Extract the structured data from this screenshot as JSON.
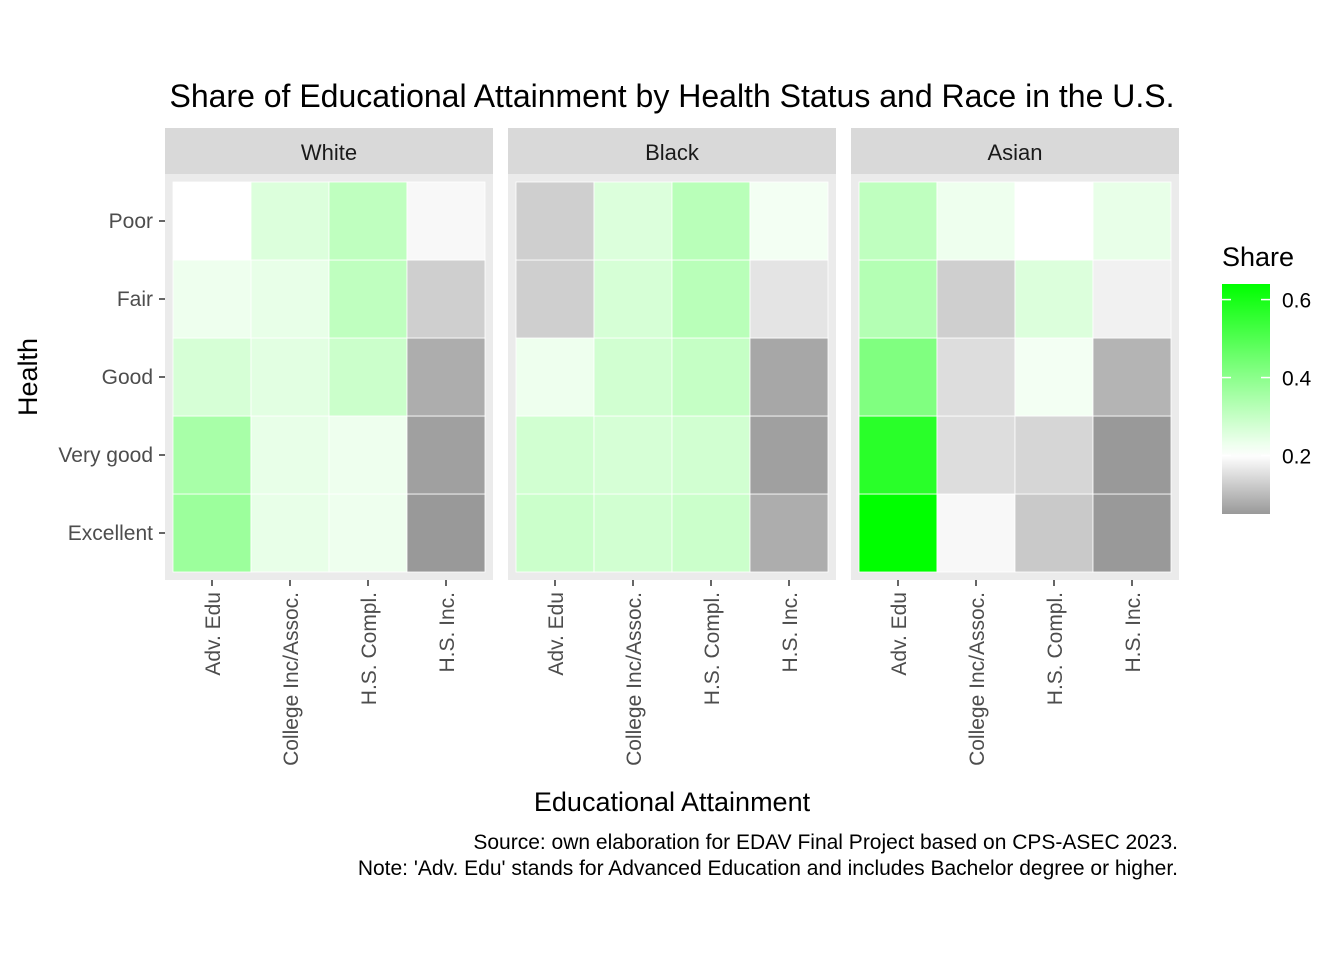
{
  "chart_data": {
    "type": "heatmap",
    "title": "Share of Educational Attainment by Health Status and Race in the U.S.",
    "xlabel": "Educational Attainment",
    "ylabel": "Health",
    "facets": [
      "White",
      "Black",
      "Asian"
    ],
    "x_categories": [
      "Adv. Edu",
      "College Inc/Assoc.",
      "H.S. Compl.",
      "H.S. Inc."
    ],
    "y_categories": [
      "Excellent",
      "Very good",
      "Good",
      "Fair",
      "Poor"
    ],
    "values": {
      "White": {
        "Poor": [
          0.2,
          0.26,
          0.31,
          0.19
        ],
        "Fair": [
          0.23,
          0.24,
          0.31,
          0.13
        ],
        "Good": [
          0.27,
          0.25,
          0.29,
          0.08
        ],
        "Very good": [
          0.35,
          0.24,
          0.23,
          0.06
        ],
        "Excellent": [
          0.37,
          0.24,
          0.23,
          0.05
        ]
      },
      "Black": {
        "Poor": [
          0.13,
          0.26,
          0.32,
          0.22
        ],
        "Fair": [
          0.13,
          0.27,
          0.32,
          0.16
        ],
        "Good": [
          0.23,
          0.28,
          0.3,
          0.07
        ],
        "Very good": [
          0.28,
          0.27,
          0.28,
          0.06
        ],
        "Excellent": [
          0.29,
          0.28,
          0.29,
          0.08
        ]
      },
      "Asian": {
        "Poor": [
          0.31,
          0.23,
          0.2,
          0.24
        ],
        "Fair": [
          0.33,
          0.13,
          0.26,
          0.18
        ],
        "Good": [
          0.42,
          0.15,
          0.22,
          0.09
        ],
        "Very good": [
          0.57,
          0.15,
          0.14,
          0.05
        ],
        "Excellent": [
          0.64,
          0.19,
          0.12,
          0.05
        ]
      }
    },
    "legend": {
      "title": "Share",
      "ticks": [
        "0.2",
        "0.4",
        "0.6"
      ],
      "tick_values": [
        0.2,
        0.4,
        0.6
      ],
      "range": [
        0.05,
        0.64
      ],
      "position": "right"
    },
    "colors": {
      "low": "#999999",
      "mid": "#ffffff",
      "high": "#00ff00",
      "midpoint": 0.2,
      "panel_bg": "#ebebeb",
      "strip_bg": "#d9d9d9",
      "grid": "#ffffff"
    },
    "caption": [
      "Source: own elaboration for EDAV Final Project based on CPS-ASEC 2023.",
      "Note: 'Adv. Edu' stands for Advanced Education and includes Bachelor degree or higher."
    ]
  }
}
